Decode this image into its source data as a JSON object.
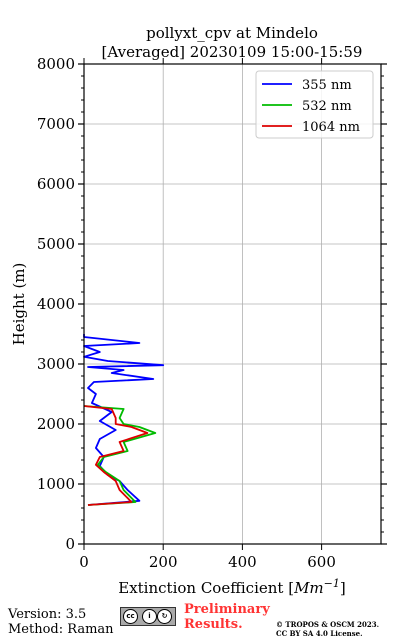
{
  "chart_data": {
    "type": "line",
    "title": "pollyxt_cpv at Mindelo",
    "subtitle": "[Averaged] 20230109 15:00-15:59",
    "xlabel_prefix": "Extinction Coefficient [",
    "xlabel_unit": "Mm",
    "xlabel_exp": "−1",
    "xlabel_suffix": "]",
    "ylabel": "Height (m)",
    "xlim": [
      0,
      750
    ],
    "ylim": [
      0,
      8000
    ],
    "xticks": [
      0,
      200,
      400,
      600
    ],
    "yticks": [
      0,
      1000,
      2000,
      3000,
      4000,
      5000,
      6000,
      7000,
      8000
    ],
    "grid": true,
    "legend_position": "top-right",
    "series": [
      {
        "name": "355 nm",
        "color": "#0000ff",
        "points": [
          [
            10,
            650
          ],
          [
            140,
            720
          ],
          [
            110,
            900
          ],
          [
            90,
            1050
          ],
          [
            60,
            1150
          ],
          [
            40,
            1300
          ],
          [
            50,
            1450
          ],
          [
            30,
            1600
          ],
          [
            40,
            1750
          ],
          [
            80,
            1900
          ],
          [
            40,
            2050
          ],
          [
            70,
            2200
          ],
          [
            20,
            2350
          ],
          [
            30,
            2500
          ],
          [
            10,
            2600
          ],
          [
            25,
            2700
          ],
          [
            175,
            2750
          ],
          [
            70,
            2850
          ],
          [
            100,
            2900
          ],
          [
            10,
            2950
          ],
          [
            200,
            2980
          ],
          [
            60,
            3050
          ],
          [
            0,
            3120
          ],
          [
            40,
            3200
          ],
          [
            0,
            3300
          ],
          [
            140,
            3350
          ],
          [
            0,
            3450
          ],
          [
            0,
            3500
          ]
        ]
      },
      {
        "name": "532 nm",
        "color": "#00bb00",
        "points": [
          [
            10,
            650
          ],
          [
            130,
            700
          ],
          [
            100,
            900
          ],
          [
            90,
            1050
          ],
          [
            55,
            1200
          ],
          [
            35,
            1320
          ],
          [
            50,
            1450
          ],
          [
            110,
            1550
          ],
          [
            100,
            1700
          ],
          [
            180,
            1850
          ],
          [
            140,
            1950
          ],
          [
            100,
            2000
          ],
          [
            90,
            2100
          ],
          [
            100,
            2250
          ],
          [
            0,
            2300
          ]
        ]
      },
      {
        "name": "1064 nm",
        "color": "#dd0000",
        "points": [
          [
            10,
            650
          ],
          [
            120,
            700
          ],
          [
            90,
            900
          ],
          [
            80,
            1050
          ],
          [
            50,
            1200
          ],
          [
            30,
            1320
          ],
          [
            40,
            1450
          ],
          [
            100,
            1550
          ],
          [
            90,
            1700
          ],
          [
            160,
            1850
          ],
          [
            120,
            1950
          ],
          [
            80,
            2000
          ],
          [
            80,
            2100
          ],
          [
            70,
            2250
          ],
          [
            0,
            2300
          ]
        ]
      }
    ]
  },
  "footer": {
    "version": "Version: 3.5",
    "method": "Method: Raman",
    "license_badge": "CC BY SA",
    "preliminary_line1": "Preliminary",
    "preliminary_line2": "Results.",
    "copyright_line1": "© TROPOS & OSCM 2023.",
    "copyright_line2": "CC BY SA 4.0 License."
  }
}
